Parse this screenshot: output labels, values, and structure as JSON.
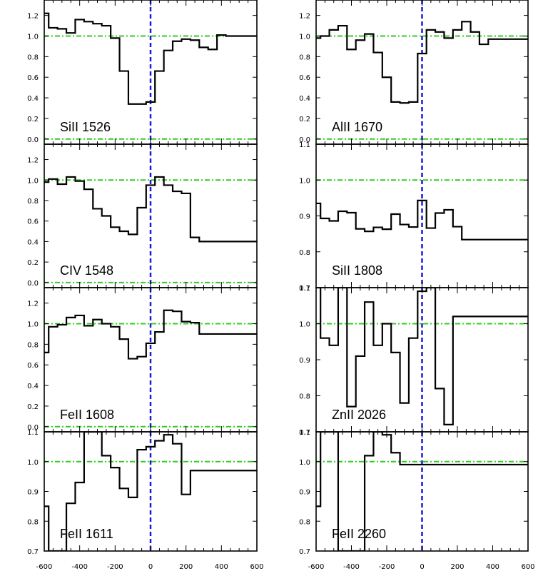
{
  "figure": {
    "velocity_tick_labels": [
      "-600",
      "-400",
      "-200",
      "0",
      "200",
      "400",
      "600"
    ],
    "colors": {
      "spectrum": "#000000",
      "continuum_zero": "#33cc22",
      "systemic": "#1a1adc",
      "frame": "#000000"
    }
  },
  "chart_data": [
    {
      "type": "line",
      "panel": "left-1",
      "label": "SiII 1526",
      "xlim": [
        -600,
        600
      ],
      "ylim": [
        -0.05,
        1.35
      ],
      "yticks": [
        "0.0",
        "0.2",
        "0.4",
        "0.6",
        "0.8",
        "1.0",
        "1.2"
      ],
      "reference_lines_y": [
        1.0,
        0.0
      ],
      "systemic_velocity": 0,
      "x": [
        -600,
        -550,
        -500,
        -450,
        -400,
        -350,
        -300,
        -250,
        -200,
        -150,
        -100,
        -50,
        0,
        50,
        100,
        150,
        200,
        250,
        300,
        350,
        400,
        450,
        500,
        550,
        600
      ],
      "y": [
        1.22,
        1.08,
        1.07,
        1.03,
        1.16,
        1.14,
        1.12,
        1.1,
        0.98,
        0.66,
        0.34,
        0.34,
        0.36,
        0.66,
        0.86,
        0.95,
        0.97,
        0.96,
        0.89,
        0.87,
        1.01,
        1.0,
        1.0,
        1.0,
        1.0
      ]
    },
    {
      "type": "line",
      "panel": "right-1",
      "label": "AlII 1670",
      "xlim": [
        -600,
        600
      ],
      "ylim": [
        -0.05,
        1.35
      ],
      "yticks": [
        "0.0",
        "0.2",
        "0.4",
        "0.6",
        "0.8",
        "1.0",
        "1.2"
      ],
      "reference_lines_y": [
        1.0,
        0.0
      ],
      "systemic_velocity": 0,
      "x": [
        -600,
        -550,
        -500,
        -450,
        -400,
        -350,
        -300,
        -250,
        -200,
        -150,
        -100,
        -50,
        0,
        50,
        100,
        150,
        200,
        250,
        300,
        350,
        400,
        450,
        500,
        550,
        600
      ],
      "y": [
        0.98,
        1.0,
        1.06,
        1.1,
        0.87,
        0.96,
        1.02,
        0.84,
        0.6,
        0.36,
        0.35,
        0.36,
        0.83,
        1.06,
        1.04,
        0.98,
        1.06,
        1.14,
        1.04,
        0.92,
        0.97,
        0.97,
        0.97,
        0.97,
        0.97
      ]
    },
    {
      "type": "line",
      "panel": "left-2",
      "label": "CIV 1548",
      "xlim": [
        -600,
        600
      ],
      "ylim": [
        -0.05,
        1.35
      ],
      "yticks": [
        "0.0",
        "0.2",
        "0.4",
        "0.6",
        "0.8",
        "1.0",
        "1.2"
      ],
      "reference_lines_y": [
        1.0,
        0.0
      ],
      "systemic_velocity": 0,
      "x": [
        -600,
        -550,
        -500,
        -450,
        -400,
        -350,
        -300,
        -250,
        -200,
        -150,
        -100,
        -50,
        0,
        50,
        100,
        150,
        200,
        250,
        300,
        350,
        400,
        450,
        500,
        550,
        600
      ],
      "y": [
        0.98,
        1.01,
        0.96,
        1.03,
        0.99,
        0.91,
        0.72,
        0.65,
        0.54,
        0.5,
        0.47,
        0.73,
        0.95,
        1.03,
        0.95,
        0.89,
        0.87,
        0.44,
        0.4,
        0.4,
        0.4,
        0.4,
        0.4,
        0.4,
        0.4
      ]
    },
    {
      "type": "line",
      "panel": "right-2",
      "label": "SiII 1808",
      "xlim": [
        -600,
        600
      ],
      "ylim": [
        0.7,
        1.1
      ],
      "yticks": [
        "0.7",
        "0.8",
        "0.9",
        "1.0",
        "1.1"
      ],
      "reference_lines_y": [
        1.0
      ],
      "systemic_velocity": 0,
      "x": [
        -600,
        -550,
        -500,
        -450,
        -400,
        -350,
        -300,
        -250,
        -200,
        -150,
        -100,
        -50,
        0,
        50,
        100,
        150,
        200,
        250,
        300,
        350,
        400,
        450,
        500,
        550,
        600
      ],
      "y": [
        0.935,
        0.893,
        0.886,
        0.913,
        0.909,
        0.864,
        0.857,
        0.868,
        0.863,
        0.905,
        0.876,
        0.869,
        0.943,
        0.866,
        0.908,
        0.917,
        0.87,
        0.834,
        0.834,
        0.834,
        0.834,
        0.834,
        0.834,
        0.834,
        0.834
      ]
    },
    {
      "type": "line",
      "panel": "left-3",
      "label": "FeII 1608",
      "xlim": [
        -600,
        600
      ],
      "ylim": [
        -0.05,
        1.35
      ],
      "yticks": [
        "0.0",
        "0.2",
        "0.4",
        "0.6",
        "0.8",
        "1.0",
        "1.2"
      ],
      "reference_lines_y": [
        1.0,
        0.0
      ],
      "systemic_velocity": 0,
      "x": [
        -600,
        -550,
        -500,
        -450,
        -400,
        -350,
        -300,
        -250,
        -200,
        -150,
        -100,
        -50,
        0,
        50,
        100,
        150,
        200,
        250,
        300,
        350,
        400,
        450,
        500,
        550,
        600
      ],
      "y": [
        0.72,
        0.97,
        0.99,
        1.06,
        1.08,
        0.98,
        1.04,
        1.0,
        0.97,
        0.85,
        0.66,
        0.68,
        0.81,
        0.92,
        1.13,
        1.12,
        1.02,
        1.01,
        0.9,
        0.9,
        0.9,
        0.9,
        0.9,
        0.9,
        0.9
      ]
    },
    {
      "type": "line",
      "panel": "right-3",
      "label": "ZnII 2026",
      "xlim": [
        -600,
        600
      ],
      "ylim": [
        0.7,
        1.1
      ],
      "yticks": [
        "0.7",
        "0.8",
        "0.9",
        "1.0",
        "1.1"
      ],
      "reference_lines_y": [
        1.0
      ],
      "systemic_velocity": 0,
      "x": [
        -600,
        -550,
        -500,
        -450,
        -400,
        -350,
        -300,
        -250,
        -200,
        -150,
        -100,
        -50,
        0,
        50,
        100,
        150,
        200,
        250,
        300,
        350,
        400,
        450,
        500,
        550,
        600
      ],
      "y": [
        1.1,
        0.96,
        0.94,
        1.1,
        0.77,
        0.91,
        1.06,
        0.94,
        1.0,
        0.92,
        0.78,
        0.96,
        1.09,
        1.1,
        0.82,
        0.72,
        1.02,
        1.02,
        1.02,
        1.02,
        1.02,
        1.02,
        1.02,
        1.02,
        1.02
      ]
    },
    {
      "type": "line",
      "panel": "left-4",
      "label": "FeII 1611",
      "xlim": [
        -600,
        600
      ],
      "ylim": [
        0.7,
        1.1
      ],
      "yticks": [
        "0.7",
        "0.8",
        "0.9",
        "1.0",
        "1.1"
      ],
      "reference_lines_y": [
        1.0
      ],
      "systemic_velocity": 0,
      "x": [
        -600,
        -550,
        -500,
        -450,
        -400,
        -350,
        -300,
        -250,
        -200,
        -150,
        -100,
        -50,
        0,
        50,
        100,
        150,
        200,
        250,
        300,
        350,
        400,
        450,
        500,
        550,
        600
      ],
      "y": [
        0.85,
        0.7,
        0.7,
        0.86,
        0.93,
        1.1,
        1.1,
        1.02,
        0.98,
        0.91,
        0.88,
        1.04,
        1.05,
        1.07,
        1.09,
        1.06,
        0.89,
        0.97,
        0.97,
        0.97,
        0.97,
        0.97,
        0.97,
        0.97,
        0.97
      ]
    },
    {
      "type": "line",
      "panel": "right-4",
      "label": "FeII 2260",
      "xlim": [
        -600,
        600
      ],
      "ylim": [
        0.7,
        1.1
      ],
      "yticks": [
        "0.7",
        "0.8",
        "0.9",
        "1.0",
        "1.1"
      ],
      "reference_lines_y": [
        1.0
      ],
      "systemic_velocity": 0,
      "x": [
        -600,
        -550,
        -500,
        -450,
        -400,
        -350,
        -300,
        -250,
        -200,
        -150,
        -100,
        -50,
        0,
        50,
        100,
        150,
        200,
        250,
        300,
        350,
        400,
        450,
        500,
        550,
        600
      ],
      "y": [
        0.85,
        1.1,
        1.1,
        0.7,
        0.7,
        0.7,
        1.02,
        1.1,
        1.09,
        1.03,
        0.99,
        0.99,
        0.99,
        0.99,
        0.99,
        0.99,
        0.99,
        0.99,
        0.99,
        0.99,
        0.99,
        0.99,
        0.99,
        0.99,
        0.99
      ]
    }
  ]
}
